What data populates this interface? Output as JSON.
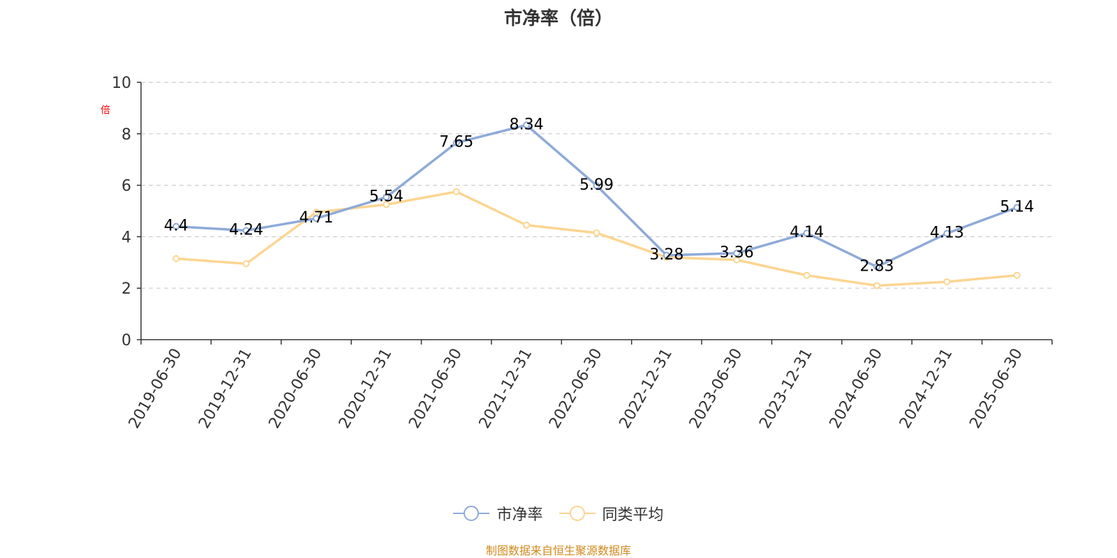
{
  "title": "市净率（倍）",
  "y_unit_label": "倍",
  "source": "制图数据来自恒生聚源数据库",
  "colors": {
    "series1": "#8eaad8",
    "series2": "#fcd591",
    "axis": "#333333",
    "grid": "#cccccc",
    "label": "#000000"
  },
  "chart_data": {
    "type": "line",
    "title": "市净率（倍）",
    "ylabel": "倍",
    "ylim": [
      0,
      10
    ],
    "yticks": [
      0,
      2,
      4,
      6,
      8,
      10
    ],
    "grid": true,
    "legend_position": "bottom",
    "categories": [
      "2019-06-30",
      "2019-12-31",
      "2020-06-30",
      "2020-12-31",
      "2021-06-30",
      "2021-12-31",
      "2022-06-30",
      "2022-12-31",
      "2023-06-30",
      "2023-12-31",
      "2024-06-30",
      "2024-12-31",
      "2025-06-30"
    ],
    "series": [
      {
        "name": "市净率",
        "values": [
          4.4,
          4.24,
          4.71,
          5.54,
          7.65,
          8.34,
          5.99,
          3.28,
          3.36,
          4.14,
          2.83,
          4.13,
          5.14
        ],
        "show_labels": true
      },
      {
        "name": "同类平均",
        "values": [
          3.15,
          2.95,
          4.95,
          5.25,
          5.75,
          4.45,
          4.15,
          3.2,
          3.1,
          2.5,
          2.1,
          2.25,
          2.5
        ],
        "show_labels": false
      }
    ]
  }
}
